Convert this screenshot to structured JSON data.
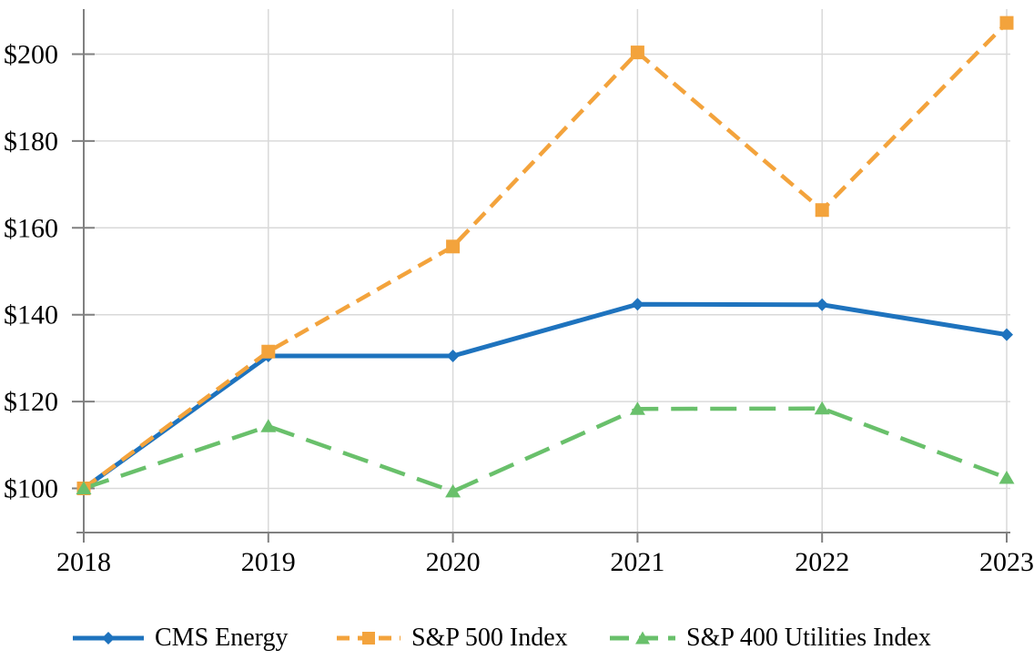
{
  "chart_data": {
    "type": "line",
    "title": "",
    "xlabel": "",
    "ylabel": "",
    "categories": [
      "2018",
      "2019",
      "2020",
      "2021",
      "2022",
      "2023"
    ],
    "y_tick_labels": [
      "$100",
      "$120",
      "$140",
      "$160",
      "$180",
      "$200"
    ],
    "y_tick_values": [
      100,
      120,
      140,
      160,
      180,
      200
    ],
    "ylim": [
      89.7,
      210.3
    ],
    "grid": true,
    "legend_position": "bottom",
    "value_prefix": "$",
    "series": [
      {
        "name": "CMS Energy",
        "color": "#1E73BE",
        "marker": "diamond",
        "line_style": "solid",
        "values": [
          100,
          130.5,
          130.5,
          142.4,
          142.3,
          135.4
        ]
      },
      {
        "name": "S&P 500 Index",
        "color": "#F3A33C",
        "marker": "square",
        "line_style": "dashed",
        "values": [
          100,
          131.5,
          155.7,
          200.4,
          164.1,
          207.2
        ]
      },
      {
        "name": "S&P 400 Utilities Index",
        "color": "#69C06B",
        "marker": "triangle",
        "line_style": "long-dashed",
        "values": [
          100,
          114.3,
          99.3,
          118.3,
          118.4,
          102.4
        ]
      }
    ],
    "colors": {
      "axis": "#808080",
      "grid": "#D9D9D9",
      "text": "#000000",
      "background": "#FFFFFF"
    }
  }
}
